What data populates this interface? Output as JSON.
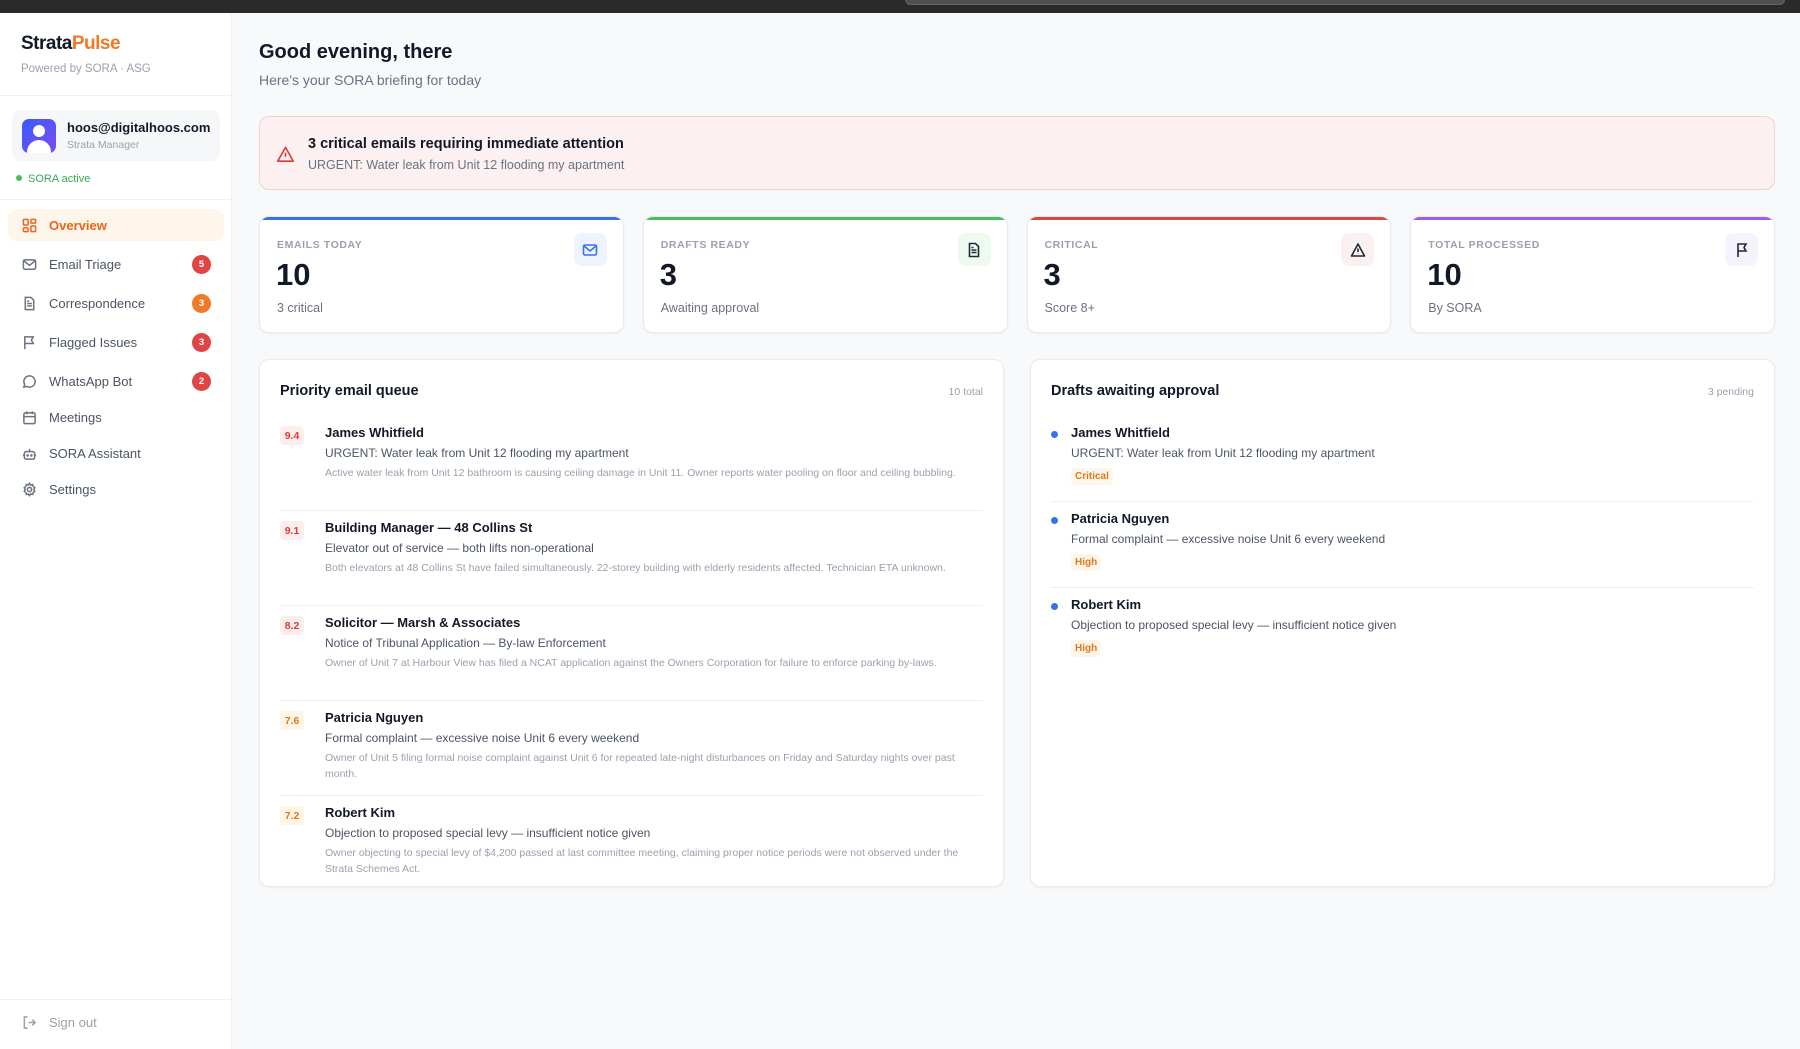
{
  "brand": {
    "name_part1": "Strata",
    "name_part2": "Pulse",
    "tagline": "Powered by SORA · ASG",
    "accent": "#f07a24"
  },
  "user": {
    "email": "hoos@digitalhoos.com",
    "role": "Strata Manager",
    "status": "SORA active"
  },
  "sidebar": {
    "items": [
      {
        "label": "Overview",
        "icon": "grid-icon",
        "selected": true
      },
      {
        "label": "Email Triage",
        "icon": "mail-icon",
        "badge": "5",
        "badge_color": "#e04444"
      },
      {
        "label": "Correspondence",
        "icon": "document-icon",
        "badge": "3",
        "badge_color": "#ef7a2a"
      },
      {
        "label": "Flagged Issues",
        "icon": "flag-icon",
        "badge": "3",
        "badge_color": "#e04444"
      },
      {
        "label": "WhatsApp Bot",
        "icon": "chat-icon",
        "badge": "2",
        "badge_color": "#e04444"
      },
      {
        "label": "Meetings",
        "icon": "calendar-icon"
      },
      {
        "label": "SORA Assistant",
        "icon": "bot-icon"
      },
      {
        "label": "Settings",
        "icon": "gear-icon"
      }
    ],
    "sign_out": "Sign out"
  },
  "header": {
    "greeting": "Good evening, there",
    "subtitle": "Here's your SORA briefing for today"
  },
  "alert": {
    "title": "3 critical emails requiring immediate attention",
    "detail": "URGENT: Water leak from Unit 12 flooding my apartment",
    "icon": "warning-icon"
  },
  "stats": [
    {
      "label": "EMAILS TODAY",
      "value": "10",
      "sub": "3 critical",
      "color": "#3b6ff0",
      "icon": "mail-icon"
    },
    {
      "label": "DRAFTS READY",
      "value": "3",
      "sub": "Awaiting approval",
      "color": "#4cbb64",
      "icon": "document-icon"
    },
    {
      "label": "CRITICAL",
      "value": "3",
      "sub": "Score 8+",
      "color": "#e04444",
      "icon": "warning-icon"
    },
    {
      "label": "TOTAL PROCESSED",
      "value": "10",
      "sub": "By SORA",
      "color": "#9b5cf0",
      "icon": "flag-icon"
    }
  ],
  "queue": {
    "title": "Priority email queue",
    "count": "10 total",
    "items": [
      {
        "score": "9.4",
        "sender": "James Whitfield",
        "subject": "URGENT: Water leak from Unit 12 flooding my apartment",
        "summary": "Active water leak from Unit 12 bathroom is causing ceiling damage in Unit 11. Owner reports water pooling on floor and ceiling bubbling.",
        "level": "critical"
      },
      {
        "score": "9.1",
        "sender": "Building Manager — 48 Collins St",
        "subject": "Elevator out of service — both lifts non-operational",
        "summary": "Both elevators at 48 Collins St have failed simultaneously. 22-storey building with elderly residents affected. Technician ETA unknown.",
        "level": "critical"
      },
      {
        "score": "8.2",
        "sender": "Solicitor — Marsh & Associates",
        "subject": "Notice of Tribunal Application — By-law Enforcement",
        "summary": "Owner of Unit 7 at Harbour View has filed a NCAT application against the Owners Corporation for failure to enforce parking by-laws.",
        "level": "critical"
      },
      {
        "score": "7.6",
        "sender": "Patricia Nguyen",
        "subject": "Formal complaint — excessive noise Unit 6 every weekend",
        "summary": "Owner of Unit 5 filing formal noise complaint against Unit 6 for repeated late-night disturbances on Friday and Saturday nights over past month.",
        "level": "high"
      },
      {
        "score": "7.2",
        "sender": "Robert Kim",
        "subject": "Objection to proposed special levy — insufficient notice given",
        "summary": "Owner objecting to special levy of $4,200 passed at last committee meeting, claiming proper notice periods were not observed under the Strata Schemes Act.",
        "level": "high"
      }
    ]
  },
  "drafts": {
    "title": "Drafts awaiting approval",
    "count": "3 pending",
    "items": [
      {
        "sender": "James Whitfield",
        "subject": "URGENT: Water leak from Unit 12 flooding my apartment",
        "tag": "Critical"
      },
      {
        "sender": "Patricia Nguyen",
        "subject": "Formal complaint — excessive noise Unit 6 every weekend",
        "tag": "High"
      },
      {
        "sender": "Robert Kim",
        "subject": "Objection to proposed special levy — insufficient notice given",
        "tag": "High"
      }
    ]
  }
}
